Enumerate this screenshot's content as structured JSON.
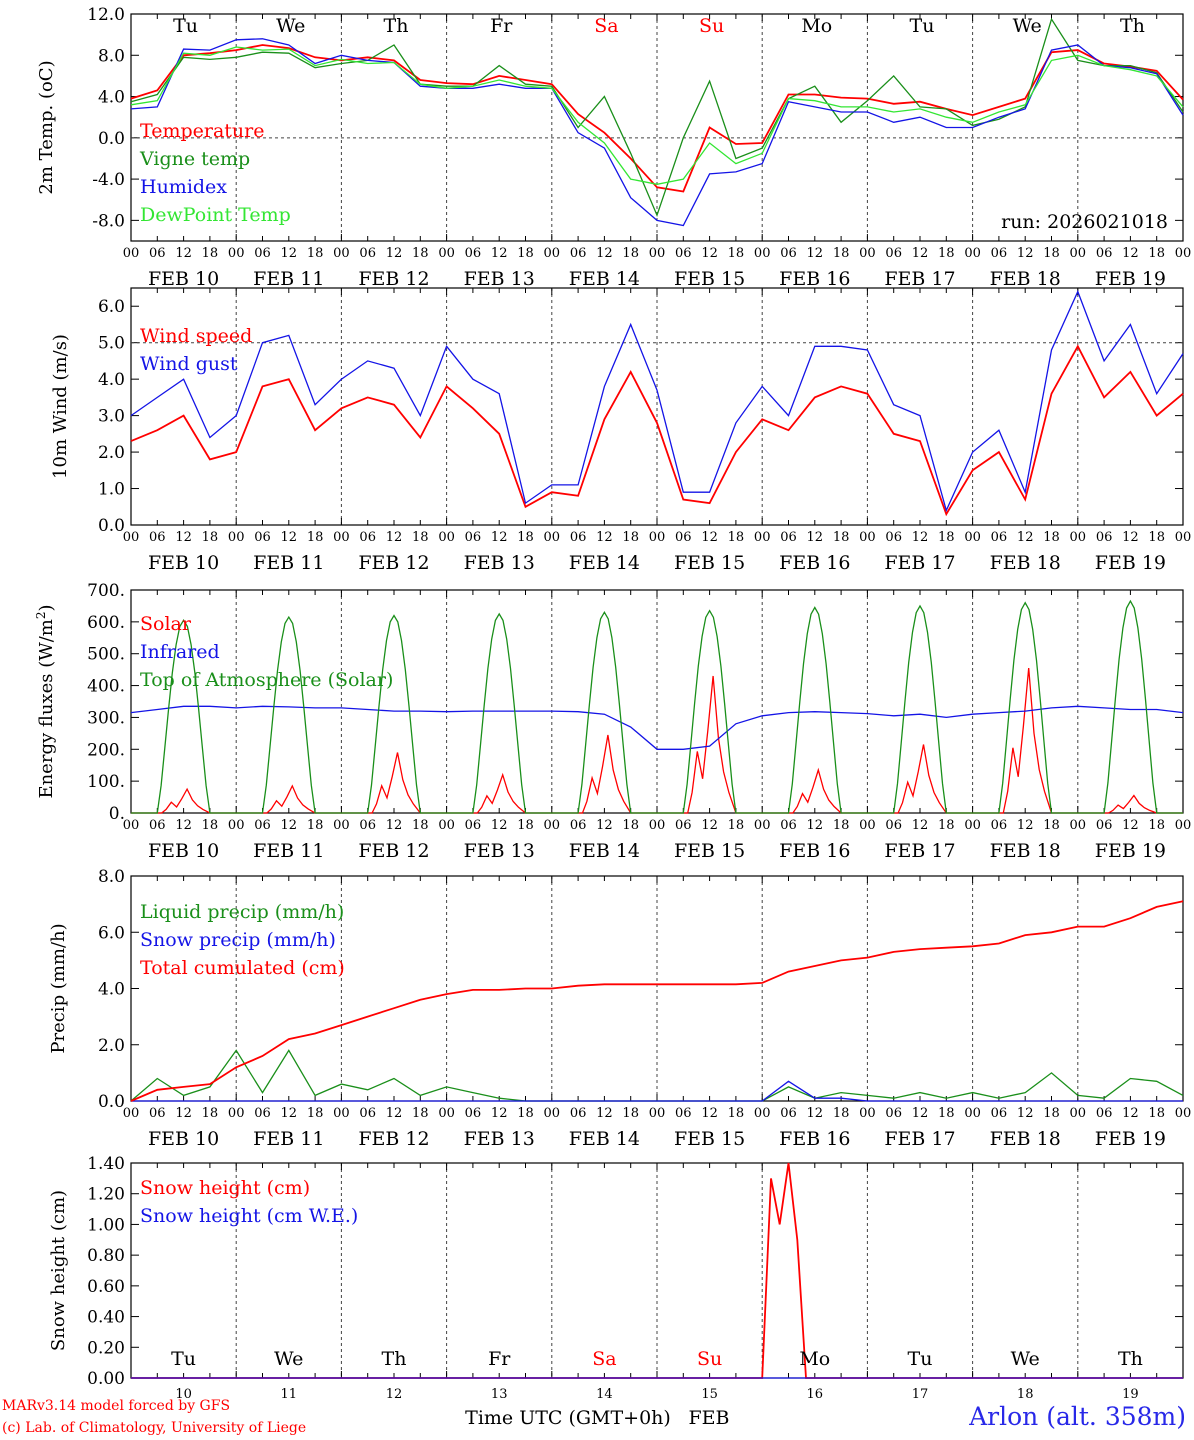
{
  "colors": {
    "red": "#ff0000",
    "green": "#1a8f1a",
    "blue": "#1414e6",
    "lightgreen": "#33e633",
    "black": "#000000",
    "weekend": "#ff0000",
    "station": "#2828e8"
  },
  "time_axis": {
    "hour_ticks": [
      "00",
      "06",
      "12",
      "18"
    ],
    "end_tick": "00",
    "date_labels": [
      "FEB 10",
      "FEB 11",
      "FEB 12",
      "FEB 13",
      "FEB 14",
      "FEB 15",
      "FEB 16",
      "FEB 17",
      "FEB 18",
      "FEB 19"
    ],
    "day_names": [
      "Tu",
      "We",
      "Th",
      "Fr",
      "Sa",
      "Su",
      "Mo",
      "Tu",
      "We",
      "Th"
    ],
    "weekend_days": [
      "Sa",
      "Su"
    ],
    "day_numbers": [
      "10",
      "11",
      "12",
      "13",
      "14",
      "15",
      "16",
      "17",
      "18",
      "19"
    ],
    "xlabel": "Time UTC (GMT+0h)",
    "month": "FEB"
  },
  "footer": {
    "model_line1": "MARv3.14 model forced by GFS",
    "model_line2": "(c) Lab. of Climatology, University of Liege",
    "station": "Arlon (alt. 358m)"
  },
  "chart_data": [
    {
      "id": "temp",
      "type": "line",
      "ylabel": "2m Temp. (oC)",
      "ylim": [
        -10,
        12
      ],
      "yticks": [
        -8,
        -4,
        0,
        4,
        8,
        12
      ],
      "ytick_labels": [
        "-8.0",
        "-4.0",
        "0.0",
        "4.0",
        "8.0",
        "12.0"
      ],
      "ref_line": 0,
      "annotation": "run: 2026021018",
      "x_hours": [
        0,
        6,
        12,
        18,
        24,
        30,
        36,
        42,
        48,
        54,
        60,
        66,
        72,
        78,
        84,
        90,
        96,
        102,
        108,
        114,
        120,
        126,
        132,
        138,
        144,
        150,
        156,
        162,
        168,
        174,
        180,
        186,
        192,
        198,
        204,
        210,
        216,
        222,
        228,
        234,
        240
      ],
      "series": [
        {
          "name": "Temperature",
          "color": "red",
          "values": [
            3.8,
            4.6,
            8.0,
            8.2,
            8.5,
            9.0,
            8.7,
            7.8,
            7.5,
            7.8,
            7.5,
            5.6,
            5.3,
            5.2,
            6.0,
            5.6,
            5.2,
            2.3,
            0.5,
            -2.0,
            -4.8,
            -5.2,
            1.0,
            -0.6,
            -0.5,
            4.2,
            4.2,
            3.9,
            3.8,
            3.3,
            3.5,
            2.8,
            2.2,
            3.0,
            3.8,
            8.3,
            8.5,
            7.2,
            6.9,
            6.5,
            3.7
          ]
        },
        {
          "name": "Vigne temp",
          "color": "green",
          "values": [
            3.5,
            4.2,
            7.8,
            7.6,
            7.8,
            8.3,
            8.2,
            6.8,
            7.2,
            7.5,
            9.0,
            5.2,
            5.0,
            5.0,
            7.0,
            5.2,
            5.0,
            1.0,
            4.0,
            -1.5,
            -7.5,
            0.0,
            5.5,
            -2.0,
            -1.0,
            3.8,
            5.0,
            1.5,
            3.6,
            6.0,
            3.0,
            2.8,
            1.2,
            1.8,
            3.0,
            11.5,
            7.5,
            7.0,
            7.0,
            6.3,
            2.5
          ]
        },
        {
          "name": "Humidex",
          "color": "blue",
          "values": [
            2.8,
            3.0,
            8.6,
            8.5,
            9.5,
            9.6,
            9.0,
            7.2,
            8.0,
            7.5,
            7.3,
            5.0,
            4.8,
            4.8,
            5.2,
            4.8,
            4.8,
            0.5,
            -1.0,
            -5.8,
            -8.0,
            -8.5,
            -3.5,
            -3.3,
            -2.5,
            3.5,
            3.0,
            2.5,
            2.5,
            1.5,
            2.0,
            1.0,
            1.0,
            2.0,
            2.8,
            8.5,
            9.0,
            7.0,
            6.8,
            6.2,
            2.2
          ]
        },
        {
          "name": "DewPoint Temp",
          "color": "lightgreen",
          "values": [
            3.2,
            3.6,
            8.2,
            8.0,
            8.8,
            8.5,
            8.6,
            7.0,
            7.6,
            7.2,
            7.3,
            5.2,
            4.8,
            5.0,
            5.6,
            5.0,
            4.8,
            1.5,
            -0.5,
            -4.0,
            -4.5,
            -4.0,
            -0.5,
            -2.5,
            -1.5,
            3.8,
            3.6,
            3.0,
            3.0,
            2.5,
            2.8,
            2.0,
            1.5,
            2.5,
            3.2,
            7.5,
            8.0,
            7.0,
            6.6,
            6.0,
            3.0
          ]
        }
      ]
    },
    {
      "id": "wind",
      "type": "line",
      "ylabel": "10m Wind (m/s)",
      "ylim": [
        0,
        6.5
      ],
      "yticks": [
        0,
        1,
        2,
        3,
        4,
        5,
        6
      ],
      "ytick_labels": [
        "0.0",
        "1.0",
        "2.0",
        "3.0",
        "4.0",
        "5.0",
        "6.0"
      ],
      "ref_line": 5,
      "x_hours": [
        0,
        6,
        12,
        18,
        24,
        30,
        36,
        42,
        48,
        54,
        60,
        66,
        72,
        78,
        84,
        90,
        96,
        102,
        108,
        114,
        120,
        126,
        132,
        138,
        144,
        150,
        156,
        162,
        168,
        174,
        180,
        186,
        192,
        198,
        204,
        210,
        216,
        222,
        228,
        234,
        240
      ],
      "series": [
        {
          "name": "Wind speed",
          "color": "red",
          "values": [
            2.3,
            2.6,
            3.0,
            1.8,
            2.0,
            3.8,
            4.0,
            2.6,
            3.2,
            3.5,
            3.3,
            2.4,
            3.8,
            3.2,
            2.5,
            0.5,
            0.9,
            0.8,
            2.9,
            4.2,
            2.8,
            0.7,
            0.6,
            2.0,
            2.9,
            2.6,
            3.5,
            3.8,
            3.6,
            2.5,
            2.3,
            0.3,
            1.5,
            2.0,
            0.7,
            3.6,
            4.9,
            3.5,
            4.2,
            3.0,
            3.6
          ]
        },
        {
          "name": "Wind gust",
          "color": "blue",
          "values": [
            3.0,
            3.5,
            4.0,
            2.4,
            3.0,
            5.0,
            5.2,
            3.3,
            4.0,
            4.5,
            4.3,
            3.0,
            4.9,
            4.0,
            3.6,
            0.6,
            1.1,
            1.1,
            3.8,
            5.5,
            3.7,
            0.9,
            0.9,
            2.8,
            3.8,
            3.0,
            4.9,
            4.9,
            4.8,
            3.3,
            3.0,
            0.4,
            2.0,
            2.6,
            0.9,
            4.8,
            6.4,
            4.5,
            5.5,
            3.6,
            4.7
          ]
        }
      ]
    },
    {
      "id": "energy",
      "type": "line",
      "ylabel": "Energy fluxes (W/m2)",
      "ylim": [
        0,
        700
      ],
      "yticks": [
        0,
        100,
        200,
        300,
        400,
        500,
        600,
        700
      ],
      "ytick_labels": [
        "0.",
        "100.",
        "200.",
        "300.",
        "400.",
        "500.",
        "600.",
        "700."
      ],
      "ref_line": null,
      "toa_peaks": [
        605,
        615,
        620,
        625,
        630,
        635,
        645,
        650,
        660,
        665
      ],
      "solar_peaks": [
        75,
        85,
        190,
        120,
        245,
        430,
        135,
        215,
        455,
        55
      ],
      "x_hours": [
        0,
        6,
        12,
        18,
        24,
        30,
        36,
        42,
        48,
        54,
        60,
        66,
        72,
        78,
        84,
        90,
        96,
        102,
        108,
        114,
        120,
        126,
        132,
        138,
        144,
        150,
        156,
        162,
        168,
        174,
        180,
        186,
        192,
        198,
        204,
        210,
        216,
        222,
        228,
        234,
        240
      ],
      "series": [
        {
          "name": "Solar",
          "color": "red",
          "values": []
        },
        {
          "name": "Infrared",
          "color": "blue",
          "values": [
            315,
            325,
            335,
            335,
            330,
            335,
            333,
            330,
            330,
            325,
            320,
            320,
            318,
            320,
            320,
            320,
            320,
            318,
            310,
            270,
            200,
            200,
            210,
            280,
            305,
            315,
            318,
            315,
            312,
            305,
            310,
            300,
            310,
            315,
            320,
            330,
            335,
            330,
            325,
            325,
            315
          ]
        },
        {
          "name": "Top of Atmosphere (Solar)",
          "color": "green",
          "values": []
        }
      ]
    },
    {
      "id": "precip",
      "type": "line",
      "ylabel": "Precip (mm/h)",
      "ylim": [
        0,
        8
      ],
      "yticks": [
        0,
        2,
        4,
        6,
        8
      ],
      "ytick_labels": [
        "0.0",
        "2.0",
        "4.0",
        "6.0",
        "8.0"
      ],
      "ref_line": null,
      "x_hours": [
        0,
        6,
        12,
        18,
        24,
        30,
        36,
        42,
        48,
        54,
        60,
        66,
        72,
        78,
        84,
        90,
        96,
        102,
        108,
        114,
        120,
        126,
        132,
        138,
        144,
        150,
        156,
        162,
        168,
        174,
        180,
        186,
        192,
        198,
        204,
        210,
        216,
        222,
        228,
        234,
        240
      ],
      "series": [
        {
          "name": "Liquid precip (mm/h)",
          "color": "green",
          "values": [
            0.0,
            0.8,
            0.2,
            0.5,
            1.8,
            0.3,
            1.8,
            0.2,
            0.6,
            0.4,
            0.8,
            0.2,
            0.5,
            0.3,
            0.1,
            0.0,
            0.0,
            0.0,
            0.0,
            0.0,
            0.0,
            0.0,
            0.0,
            0.0,
            0.0,
            0.5,
            0.1,
            0.3,
            0.2,
            0.1,
            0.3,
            0.1,
            0.3,
            0.1,
            0.3,
            1.0,
            0.2,
            0.1,
            0.8,
            0.7,
            0.2
          ]
        },
        {
          "name": "Snow precip (mm/h)",
          "color": "blue",
          "values": [
            0.0,
            0.0,
            0.0,
            0.0,
            0.0,
            0.0,
            0.0,
            0.0,
            0.0,
            0.0,
            0.0,
            0.0,
            0.0,
            0.0,
            0.0,
            0.0,
            0.0,
            0.0,
            0.0,
            0.0,
            0.0,
            0.0,
            0.0,
            0.0,
            0.0,
            0.7,
            0.1,
            0.1,
            0.0,
            0.0,
            0.0,
            0.0,
            0.0,
            0.0,
            0.0,
            0.0,
            0.0,
            0.0,
            0.0,
            0.0,
            0.0
          ]
        },
        {
          "name": "Total cumulated (cm)",
          "color": "red",
          "values": [
            0.0,
            0.4,
            0.5,
            0.6,
            1.2,
            1.6,
            2.2,
            2.4,
            2.7,
            3.0,
            3.3,
            3.6,
            3.8,
            3.95,
            3.95,
            4.0,
            4.0,
            4.1,
            4.15,
            4.15,
            4.15,
            4.15,
            4.15,
            4.15,
            4.2,
            4.6,
            4.8,
            5.0,
            5.1,
            5.3,
            5.4,
            5.45,
            5.5,
            5.6,
            5.9,
            6.0,
            6.2,
            6.2,
            6.5,
            6.9,
            7.1
          ]
        }
      ]
    },
    {
      "id": "snow",
      "type": "line",
      "ylabel": "Snow height (cm)",
      "ylim": [
        0,
        1.4
      ],
      "yticks": [
        0,
        0.2,
        0.4,
        0.6,
        0.8,
        1.0,
        1.2,
        1.4
      ],
      "ytick_labels": [
        "0.00",
        "0.20",
        "0.40",
        "0.60",
        "0.80",
        "1.00",
        "1.20",
        "1.40"
      ],
      "ref_line": null,
      "x_hours": [
        0,
        120,
        144,
        146,
        148,
        150,
        152,
        154,
        156,
        240
      ],
      "series": [
        {
          "name": "Snow height (cm)",
          "color": "red",
          "values": [
            0.0,
            0.0,
            0.0,
            1.3,
            1.0,
            1.4,
            0.9,
            0.0,
            0.0,
            0.0
          ]
        },
        {
          "name": "Snow height (cm W.E.)",
          "color": "blue",
          "values": [
            0.0,
            0.0,
            0.0,
            0.0,
            0.0,
            0.0,
            0.0,
            0.0,
            0.0,
            0.0
          ]
        }
      ]
    }
  ]
}
